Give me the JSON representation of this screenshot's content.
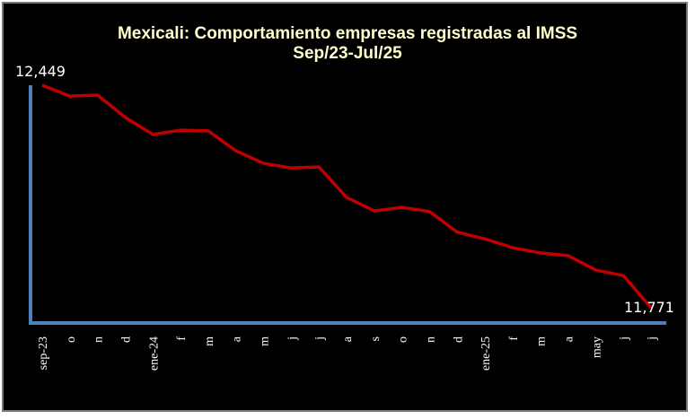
{
  "chart_data": {
    "type": "line",
    "title": "Mexicali: Comportamiento empresas registradas al IMSS",
    "subtitle": "Sep/23-Jul/25",
    "categories": [
      "sep-23",
      "o",
      "n",
      "d",
      "ene-24",
      "f",
      "m",
      "a",
      "m",
      "j",
      "j",
      "a",
      "s",
      "o",
      "n",
      "d",
      "ene-25",
      "f",
      "m",
      "a",
      "may",
      "j",
      "j"
    ],
    "series": [
      {
        "color": "#c00000",
        "values": [
          12449,
          12416,
          12419,
          12351,
          12299,
          12312,
          12310,
          12249,
          12211,
          12197,
          12200,
          12107,
          12066,
          12077,
          12064,
          12001,
          11981,
          11954,
          11938,
          11930,
          11886,
          11869,
          11771
        ],
        "value_labels": [
          "12,449",
          null,
          null,
          null,
          null,
          null,
          null,
          null,
          null,
          null,
          null,
          null,
          null,
          null,
          null,
          null,
          null,
          null,
          null,
          null,
          null,
          null,
          "11,771"
        ]
      }
    ],
    "axis_color": "#4f81bd"
  }
}
